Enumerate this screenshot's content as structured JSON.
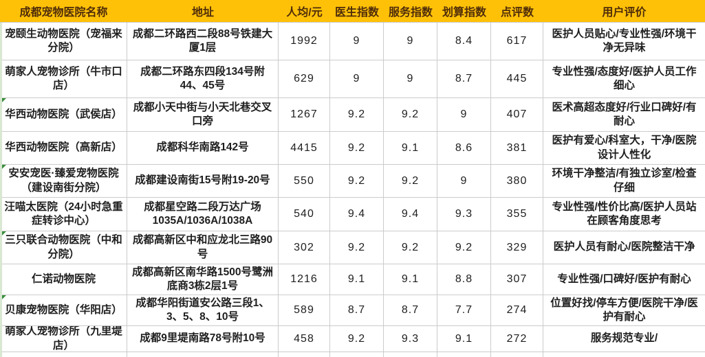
{
  "colors": {
    "header_bg": "#FFC107",
    "header_text": "#4F2D0A",
    "grid_line": "#CBCBCB",
    "body_text": "#1E1E1E",
    "corner_marker_green": "#388E3C",
    "left_edge_strip": "#D9E8D2"
  },
  "table": {
    "columns": [
      {
        "key": "name",
        "label": "成都宠物医院名称"
      },
      {
        "key": "address",
        "label": "地址"
      },
      {
        "key": "price",
        "label": "人均/元"
      },
      {
        "key": "doctor",
        "label": "医生指数"
      },
      {
        "key": "service",
        "label": "服务指数"
      },
      {
        "key": "value",
        "label": "划算指数"
      },
      {
        "key": "reviews",
        "label": "点评数"
      },
      {
        "key": "comments",
        "label": "用户评价"
      }
    ],
    "rows": [
      {
        "name": "宠颐生动物医院（宠福来分院）",
        "address": "成都二环路西二段88号铁建大厦1层",
        "price": "1992",
        "doctor": "9",
        "service": "9",
        "value": "8.4",
        "reviews": "617",
        "comments": "医护人员贴心/专业性强/环境干净无异味",
        "corner_marker": false
      },
      {
        "name": "萌家人宠物诊所（牛市口店）",
        "address": "成都二环路东四段134号附44、45号",
        "price": "629",
        "doctor": "9",
        "service": "9",
        "value": "8.7",
        "reviews": "445",
        "comments": "专业性强/态度好/医护人员工作细心",
        "corner_marker": false
      },
      {
        "name": "华西动物医院（武侯店）",
        "address": "成都小天中街与小天北巷交叉口旁",
        "price": "1267",
        "doctor": "9.2",
        "service": "9.2",
        "value": "9",
        "reviews": "407",
        "comments": "医术高超态度好/行业口碑好/有耐心",
        "corner_marker": true
      },
      {
        "name": "华西动物医院（高新店）",
        "address": "成都科华南路142号",
        "price": "4415",
        "doctor": "9.2",
        "service": "9.1",
        "value": "8.6",
        "reviews": "381",
        "comments": "医护有爱心/科室大，干净/医院设计人性化",
        "corner_marker": false
      },
      {
        "name": "安安宠医·臻爱宠物医院（建设南街分院）",
        "address": "成都建设南街15号附19-20号",
        "price": "550",
        "doctor": "9.2",
        "service": "9.2",
        "value": "9",
        "reviews": "380",
        "comments": "环境干净整洁/有独立诊室/检查仔细",
        "corner_marker": true
      },
      {
        "name": "汪喵太医院（24小时急重症转诊中心）",
        "address": "成都星空路二段万达广场1035A/1036A/1038A",
        "price": "540",
        "doctor": "9.4",
        "service": "9.4",
        "value": "9.3",
        "reviews": "355",
        "comments": "专业性强/性价比高/医护人员站在顾客角度思考",
        "corner_marker": false
      },
      {
        "name": "三只联合动物医院（中和分院）",
        "address": "成都高新区中和应龙北三路90号",
        "price": "302",
        "doctor": "9.2",
        "service": "9.2",
        "value": "9.2",
        "reviews": "329",
        "comments": "医护人员有耐心/医院整洁干净",
        "corner_marker": true
      },
      {
        "name": "仁诺动物医院",
        "address": "成都高新区南华路1500号鹭洲底商3栋2层1号",
        "price": "1216",
        "doctor": "9.1",
        "service": "9.1",
        "value": "8.8",
        "reviews": "307",
        "comments": "专业性强/口碑好/医护有耐心",
        "corner_marker": false
      },
      {
        "name": "贝康宠物医院（华阳店）",
        "address": "成都华阳街道安公路三段1、3、5、8、10号",
        "price": "589",
        "doctor": "8.7",
        "service": "8.7",
        "value": "7.7",
        "reviews": "274",
        "comments": "位置好找/停车方便/医院干净/医护有耐心",
        "corner_marker": true
      },
      {
        "name": "萌家人宠物诊所（九里堤店）",
        "address": "成都9里堤南路78号附10号",
        "price": "458",
        "doctor": "9.2",
        "service": "9.3",
        "value": "9.1",
        "reviews": "272",
        "comments": "服务规范专业/",
        "corner_marker": false
      }
    ]
  }
}
